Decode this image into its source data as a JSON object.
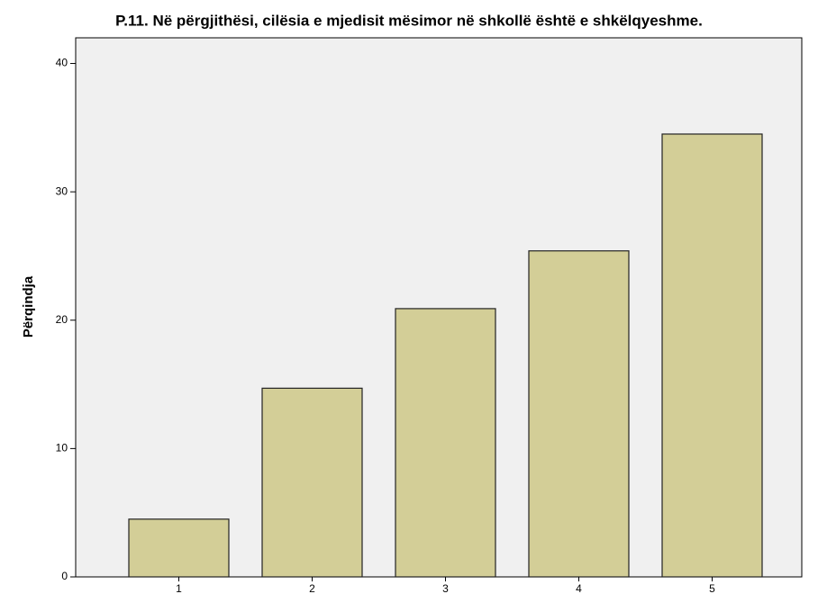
{
  "chart_data": {
    "type": "bar",
    "title": "P.11. Në përgjithësi, cilësia e mjedisit mësimor në shkollë është e shkëlqyeshme.",
    "y_label": "Përqindja",
    "categories": [
      "1",
      "2",
      "3",
      "4",
      "5"
    ],
    "values": [
      4.5,
      14.7,
      20.9,
      25.4,
      34.5
    ],
    "color": "#d3ce97",
    "ylim": [
      0,
      42
    ],
    "yticks": [
      0,
      10,
      20,
      30,
      40
    ],
    "grid": false
  }
}
